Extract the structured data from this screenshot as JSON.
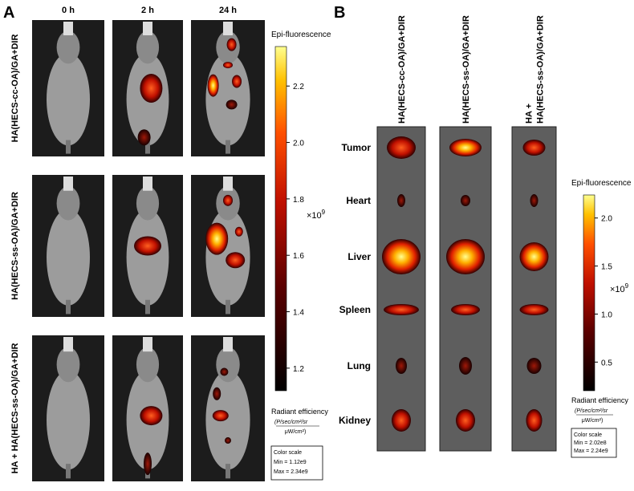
{
  "panel_a": {
    "label": "A",
    "time_points": [
      "0 h",
      "2 h",
      "24 h"
    ],
    "groups": [
      "HA(HECS-cc-OA)/GA+DIR",
      "HA(HECS-ss-OA)/GA+DIR",
      "HA + HA(HECS-ss-OA)/GA+DIR"
    ],
    "colorbar": {
      "title": "Epi-fluorescence",
      "range": [
        1.12,
        2.34
      ],
      "ticks": [
        2.2,
        {
          "value": 2,
          "label": "2.0"
        },
        1.8,
        1.6,
        1.4,
        1.2
      ],
      "multiplier": "×10",
      "multiplier_exponent": "9",
      "unit_title": "Radiant efficiency",
      "unit_numerator": "(P/sec/cm²/sr",
      "unit_denominator": "μW/cm²)",
      "scale_box": {
        "title": "Color scale",
        "min": "Min = 1.12e9",
        "max": "Max = 2.34e9"
      }
    }
  },
  "panel_b": {
    "label": "B",
    "groups": [
      [
        "HA(HECS-cc-OA)/GA+DIR"
      ],
      [
        "HA(HECS-ss-OA)/GA+DIR"
      ],
      [
        "HA +",
        "HA(HECS-ss-OA)/GA+DIR"
      ]
    ],
    "organs": [
      "Tumor",
      "Heart",
      "Liver",
      "Spleen",
      "Lung",
      "Kidney"
    ],
    "colorbar": {
      "title": "Epi-fluorescence",
      "range": [
        0.202,
        2.24
      ],
      "ticks": [
        {
          "value": 2,
          "label": "2.0"
        },
        1.5,
        {
          "value": 1,
          "label": "1.0"
        },
        0.5
      ],
      "multiplier": "×10",
      "multiplier_exponent": "9",
      "unit_title": "Radiant efficiency",
      "unit_numerator": "(P/sec/cm²/sr",
      "unit_denominator": "μW/cm²)",
      "scale_box": {
        "title": "Color scale",
        "min": "Min = 2.02e8",
        "max": "Max = 2.24e9"
      }
    }
  }
}
